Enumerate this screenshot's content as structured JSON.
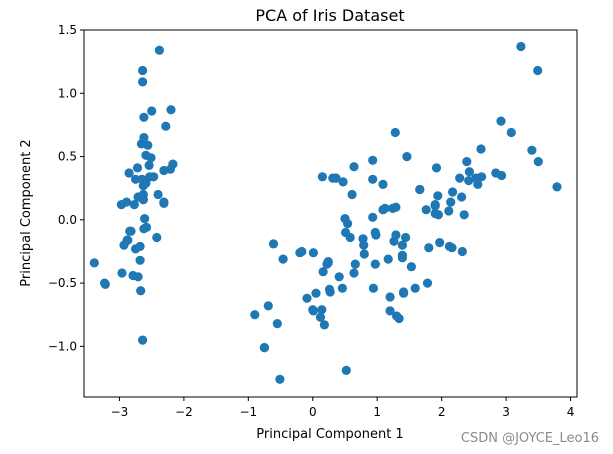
{
  "chart_data": {
    "type": "scatter",
    "title": "PCA of Iris Dataset",
    "xlabel": "Principal Component 1",
    "ylabel": "Principal Component 2",
    "xlim": [
      -3.55,
      4.1
    ],
    "ylim": [
      -1.4,
      1.5
    ],
    "xticks": [
      -3,
      -2,
      -1,
      0,
      1,
      2,
      3,
      4
    ],
    "yticks": [
      -1.0,
      -0.5,
      0.0,
      0.5,
      1.0,
      1.5
    ],
    "grid": false,
    "marker_color": "#1f77b4",
    "x": [
      -3.22,
      -2.68,
      -2.71,
      -2.89,
      -2.75,
      -2.28,
      -2.82,
      -2.63,
      -3.39,
      -2.67,
      -2.5,
      -2.61,
      -2.79,
      -3.23,
      -2.64,
      -2.38,
      -2.62,
      -2.65,
      -2.2,
      -2.59,
      -2.31,
      -2.54,
      -2.56,
      -2.87,
      -2.84,
      -2.77,
      -2.75,
      -2.63,
      -2.62,
      -2.96,
      -2.88,
      -2.66,
      -2.93,
      -2.59,
      -2.53,
      -2.17,
      -2.31,
      -2.71,
      -2.85,
      -2.63,
      -2.58,
      -2.64,
      -2.47,
      -2.97,
      -2.21,
      -2.63,
      -2.4,
      -2.51,
      -2.31,
      -2.68,
      -2.72,
      -2.62,
      -2.64,
      -2.42,
      1.28,
      0.93,
      1.46,
      0.18,
      1.09,
      0.64,
      1.09,
      -0.75,
      0.93,
      0.01,
      -0.51,
      0.51,
      0.26,
      0.98,
      -0.17,
      0.93,
      0.66,
      0.24,
      0.94,
      0.05,
      1.12,
      0.36,
      1.29,
      0.97,
      0.61,
      0.64,
      1.24,
      1.66,
      0.97,
      -0.2,
      0.01,
      -0.09,
      0.12,
      1.39,
      0.54,
      0.5,
      1.2,
      0.79,
      0.24,
      0.22,
      0.41,
      0.8,
      0.14,
      -0.46,
      0.46,
      0.16,
      0.31,
      0.47,
      -0.61,
      0.27,
      2.53,
      1.41,
      2.62,
      1.97,
      2.35,
      3.4,
      0.52,
      2.93,
      2.32,
      2.92,
      1.66,
      1.8,
      2.17,
      1.34,
      1.59,
      1.9,
      1.95,
      3.49,
      3.79,
      1.3,
      2.43,
      1.2,
      3.5,
      1.39,
      2.28,
      2.61,
      1.26,
      1.29,
      2.12,
      2.39,
      2.84,
      3.23,
      2.16,
      1.44,
      1.78,
      3.08,
      2.14,
      1.9,
      1.17,
      2.11,
      2.31,
      1.92,
      1.41,
      2.56,
      2.42,
      1.94,
      1.53,
      1.76,
      1.9,
      1.39,
      -0.9,
      -0.75,
      -0.69,
      -0.55,
      0.0,
      0.58,
      0.78,
      0.15
    ],
    "y": [
      -0.51,
      -0.32,
      0.18,
      0.14,
      0.32,
      0.74,
      -0.09,
      0.16,
      -0.34,
      -0.56,
      0.86,
      0.01,
      -0.44,
      -0.5,
      1.18,
      1.34,
      0.81,
      0.32,
      0.87,
      0.51,
      0.39,
      0.43,
      0.59,
      -0.16,
      -0.09,
      0.12,
      -0.23,
      0.2,
      0.65,
      -0.42,
      -0.16,
      0.6,
      -0.2,
      0.29,
      0.34,
      0.44,
      0.14,
      -0.45,
      0.37,
      0.16,
      -0.06,
      1.09,
      0.34,
      0.12,
      0.4,
      0.27,
      0.2,
      0.49,
      0.13,
      -0.21,
      0.41,
      -0.07,
      -0.95,
      -0.14,
      0.69,
      0.32,
      0.5,
      -0.83,
      0.08,
      -0.42,
      0.28,
      -1.01,
      0.02,
      -0.72,
      -1.26,
      -0.1,
      -0.55,
      -0.12,
      -0.25,
      0.47,
      -0.35,
      -0.33,
      -0.54,
      -0.58,
      0.09,
      0.33,
      0.1,
      -0.1,
      0.2,
      0.42,
      0.09,
      0.24,
      -0.35,
      -0.26,
      -0.26,
      -0.62,
      -0.77,
      -0.3,
      -0.03,
      0.01,
      -0.72,
      -0.2,
      -0.34,
      -0.35,
      -0.45,
      -0.27,
      -0.71,
      -0.31,
      -0.54,
      -0.41,
      0.33,
      0.3,
      -0.19,
      -0.57,
      0.33,
      -0.58,
      0.34,
      -0.18,
      0.04,
      0.55,
      -1.19,
      0.35,
      -0.25,
      0.78,
      0.24,
      -0.22,
      0.22,
      -0.78,
      -0.54,
      0.12,
      0.04,
      1.18,
      0.26,
      -0.76,
      0.38,
      -0.61,
      0.46,
      -0.2,
      0.33,
      0.56,
      -0.17,
      -0.12,
      -0.21,
      0.46,
      0.37,
      1.37,
      -0.22,
      -0.14,
      -0.5,
      0.69,
      0.14,
      0.05,
      -0.31,
      0.07,
      0.18,
      0.41,
      -0.57,
      0.28,
      0.31,
      0.19,
      -0.37,
      0.08,
      0.11,
      -0.28,
      -0.75,
      -1.01,
      -0.68,
      -0.82,
      -0.71,
      -0.14,
      -0.15,
      0.34
    ]
  },
  "watermark": "CSDN @JOYCE_Leo16"
}
